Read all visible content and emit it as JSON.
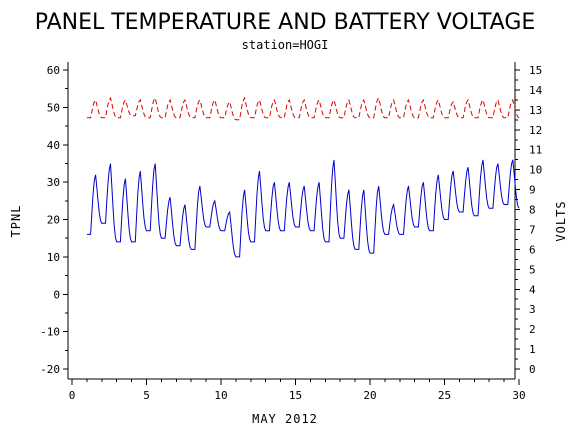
{
  "chart_data": {
    "type": "line",
    "title": "PANEL TEMPERATURE AND BATTERY VOLTAGE",
    "subtitle": "station=HOGI",
    "xlabel": "MAY 2012",
    "ylabel_left": "TPNL",
    "ylabel_right": "VOLTS",
    "xlim": [
      0,
      30
    ],
    "ylim_left": [
      -20,
      60
    ],
    "ylim_right": [
      0,
      15
    ],
    "x_ticks": [
      "0",
      "5",
      "10",
      "15",
      "20",
      "25",
      "30"
    ],
    "y_ticks_left": [
      "-20",
      "-10",
      "0",
      "10",
      "20",
      "30",
      "40",
      "50",
      "60"
    ],
    "y_ticks_right": [
      "0",
      "1",
      "2",
      "3",
      "4",
      "5",
      "6",
      "7",
      "8",
      "9",
      "10",
      "11",
      "12",
      "13",
      "14",
      "15"
    ],
    "colors": {
      "temperature": "#0000cc",
      "voltage": "#dd0000"
    },
    "series": [
      {
        "axis": "left",
        "color": "#0000cc",
        "days": [
          1,
          2,
          3,
          4,
          5,
          6,
          7,
          8,
          9,
          10,
          11,
          12,
          13,
          14,
          15,
          16,
          17,
          18,
          19,
          20,
          21,
          22,
          23,
          24,
          25,
          26,
          27,
          28,
          29,
          30
        ],
        "daily_min": [
          16,
          19,
          14,
          14,
          17,
          15,
          13,
          12,
          18,
          17,
          10,
          14,
          17,
          17,
          18,
          17,
          14,
          15,
          12,
          11,
          16,
          16,
          18,
          17,
          20,
          22,
          21,
          23,
          24,
          23
        ],
        "daily_max": [
          32,
          35,
          31,
          33,
          35,
          26,
          24,
          29,
          25,
          22,
          28,
          33,
          30,
          30,
          29,
          30,
          36,
          28,
          28,
          29,
          24,
          29,
          30,
          32,
          33,
          34,
          36,
          35,
          36,
          35
        ]
      },
      {
        "axis": "right",
        "color": "#dd0000",
        "days": [
          1,
          2,
          3,
          4,
          5,
          6,
          7,
          8,
          9,
          10,
          11,
          12,
          13,
          14,
          15,
          16,
          17,
          18,
          19,
          20,
          21,
          22,
          23,
          24,
          25,
          26,
          27,
          28,
          29,
          30
        ],
        "daily_min": [
          12.6,
          12.6,
          12.6,
          12.7,
          12.6,
          12.6,
          12.6,
          12.6,
          12.6,
          12.6,
          12.5,
          12.6,
          12.6,
          12.6,
          12.6,
          12.6,
          12.6,
          12.6,
          12.6,
          12.6,
          12.6,
          12.6,
          12.6,
          12.6,
          12.6,
          12.6,
          12.6,
          12.6,
          12.6,
          12.6
        ],
        "daily_max": [
          13.5,
          13.6,
          13.5,
          13.5,
          13.6,
          13.5,
          13.5,
          13.5,
          13.5,
          13.4,
          13.6,
          13.5,
          13.5,
          13.5,
          13.5,
          13.5,
          13.5,
          13.5,
          13.5,
          13.6,
          13.5,
          13.5,
          13.5,
          13.5,
          13.4,
          13.5,
          13.5,
          13.5,
          13.5,
          13.4
        ]
      }
    ]
  }
}
